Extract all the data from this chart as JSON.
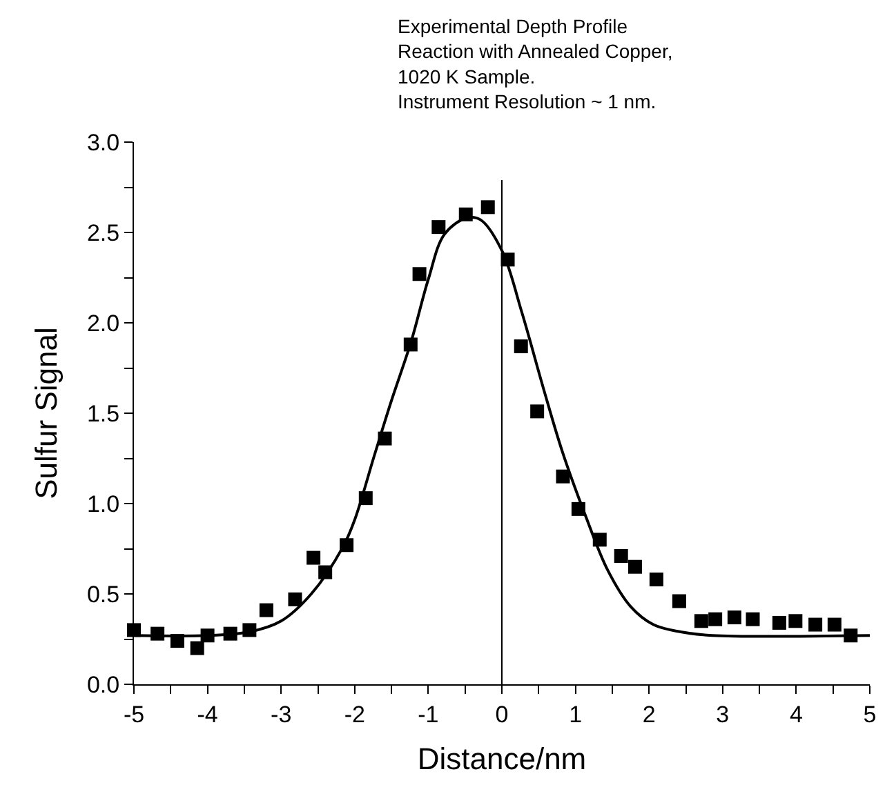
{
  "chart_data": {
    "type": "scatter",
    "xlabel": "Distance/nm",
    "ylabel": "Sulfur Signal",
    "annotations": [
      "Experimental Depth Profile\nReaction with Annealed Copper,\n1020 K Sample.\nInstrument Resolution ~ 1 nm."
    ],
    "xlim": [
      -5,
      5
    ],
    "ylim": [
      0,
      3.0
    ],
    "xticks": [
      -5,
      {
        "value": -4.5,
        "label": null
      },
      -4,
      {
        "value": -3.5,
        "label": null
      },
      -3,
      {
        "value": -2.5,
        "label": null
      },
      -2,
      {
        "value": -1.5,
        "label": null
      },
      -1,
      {
        "value": -0.5,
        "label": null
      },
      0,
      {
        "value": 0.5,
        "label": null
      },
      1,
      {
        "value": 1.5,
        "label": null
      },
      2,
      {
        "value": 2.5,
        "label": null
      },
      3,
      {
        "value": 3.5,
        "label": null
      },
      4,
      {
        "value": 4.5,
        "label": null
      },
      5
    ],
    "yticks": [
      {
        "value": 0,
        "label": "0.0"
      },
      {
        "value": 0.25,
        "label": null
      },
      {
        "value": 0.5,
        "label": "0.5"
      },
      {
        "value": 0.75,
        "label": null
      },
      {
        "value": 1,
        "label": "1.0"
      },
      {
        "value": 1.25,
        "label": null
      },
      {
        "value": 1.5,
        "label": "1.5"
      },
      {
        "value": 1.75,
        "label": null
      },
      {
        "value": 2,
        "label": "2.0"
      },
      {
        "value": 2.25,
        "label": null
      },
      {
        "value": 2.5,
        "label": "2.5"
      },
      {
        "value": 2.75,
        "label": null
      },
      {
        "value": 3,
        "label": "3.0"
      }
    ],
    "ref_lines": [
      {
        "axis": "x",
        "value": 0,
        "label": null,
        "color": "#000000"
      }
    ],
    "series": [
      {
        "marker": "square",
        "color": "#000000",
        "x": [
          -5.0,
          -4.68,
          -4.41,
          -4.14,
          -4.0,
          -3.69,
          -3.43,
          -3.2,
          -2.81,
          -2.56,
          -2.4,
          -2.11,
          -1.85,
          -1.59,
          -1.24,
          -1.12,
          -0.86,
          -0.49,
          -0.19,
          0.08,
          0.26,
          0.48,
          0.83,
          1.04,
          1.33,
          1.62,
          1.81,
          2.1,
          2.41,
          2.71,
          2.9,
          3.16,
          3.41,
          3.77,
          3.99,
          4.26,
          4.52,
          4.74
        ],
        "values": [
          0.3,
          0.28,
          0.24,
          0.2,
          0.27,
          0.28,
          0.3,
          0.41,
          0.47,
          0.7,
          0.62,
          0.77,
          1.03,
          1.36,
          1.88,
          2.27,
          2.53,
          2.6,
          2.64,
          2.35,
          1.87,
          1.51,
          1.15,
          0.97,
          0.8,
          0.71,
          0.65,
          0.58,
          0.46,
          0.35,
          0.36,
          0.37,
          0.36,
          0.34,
          0.35,
          0.33,
          0.33,
          0.27
        ]
      },
      {
        "type": "line",
        "marker": "none",
        "line_style": "solid",
        "color": "#000000",
        "x": [
          -5,
          -4,
          -3.43,
          -3,
          -2.59,
          -2.16,
          -2,
          -1.73,
          -1.5,
          -1.23,
          -1,
          -0.78,
          -0.48,
          -0.29,
          0,
          0.27,
          0.57,
          0.82,
          1.13,
          1.44,
          1.75,
          2.06,
          2.43,
          2.86,
          5
        ],
        "values": [
          0.27,
          0.27,
          0.29,
          0.35,
          0.5,
          0.76,
          0.91,
          1.27,
          1.57,
          1.9,
          2.24,
          2.49,
          2.58,
          2.57,
          2.4,
          2.06,
          1.63,
          1.29,
          0.94,
          0.63,
          0.43,
          0.33,
          0.29,
          0.27,
          0.27
        ]
      }
    ]
  }
}
